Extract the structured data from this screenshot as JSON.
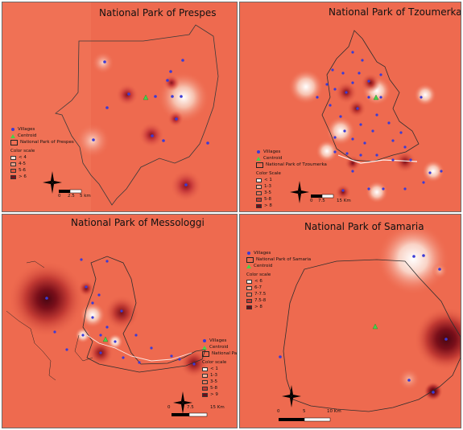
{
  "panels": [
    {
      "title": "National Park of Prespes",
      "legend": {
        "villages": "Villages",
        "centroid": "Centroid",
        "park": "National Park of Prespes",
        "scale_title": "Color scale",
        "classes": [
          "< 4",
          "4-5",
          "5-6",
          "> 6"
        ]
      },
      "scalebar": {
        "ticks": [
          "0",
          "2.5",
          "5 km"
        ]
      }
    },
    {
      "title": "National Park of Tzoumerka",
      "legend": {
        "villages": "Villages",
        "centroid": "Centroid",
        "park": "National Park of Tzoumerka",
        "scale_title": "Color Scale",
        "classes": [
          "< 1",
          "1-3",
          "3-5",
          "5-8",
          "> 8"
        ]
      },
      "scalebar": {
        "ticks": [
          "0",
          "7.5",
          "15 Km"
        ]
      }
    },
    {
      "title": "National Park of Messologgi",
      "legend": {
        "villages": "Villages",
        "centroid": "Centroid",
        "park": "National Park",
        "scale_title": "Color scale",
        "classes": [
          "< 1",
          "1-3",
          "3-5",
          "5-8",
          "> 9"
        ]
      },
      "scalebar": {
        "ticks": [
          "0",
          "7.5",
          "15 Km"
        ]
      }
    },
    {
      "title": "National Park of Samaria",
      "legend": {
        "villages": "Villages",
        "centroid": "Centroid",
        "park": "National Park of Samaria",
        "scale_title": "Color scale",
        "classes": [
          "< 6",
          "6-7",
          "7-7.5",
          "7.5-8",
          "> 8"
        ]
      },
      "scalebar": {
        "ticks": [
          "0",
          "5",
          "10 Km"
        ]
      }
    }
  ],
  "colors": {
    "base": "#ef6a4e",
    "class_ramp_4": [
      "#fbe6df",
      "#f4a48b",
      "#e0553c",
      "#7a0f1a"
    ],
    "class_ramp_5": [
      "#fdf1ec",
      "#f6b39e",
      "#ec7a5e",
      "#c23a33",
      "#6e0c18"
    ],
    "village": "#3b3bd6",
    "centroid": "#47d14a"
  }
}
